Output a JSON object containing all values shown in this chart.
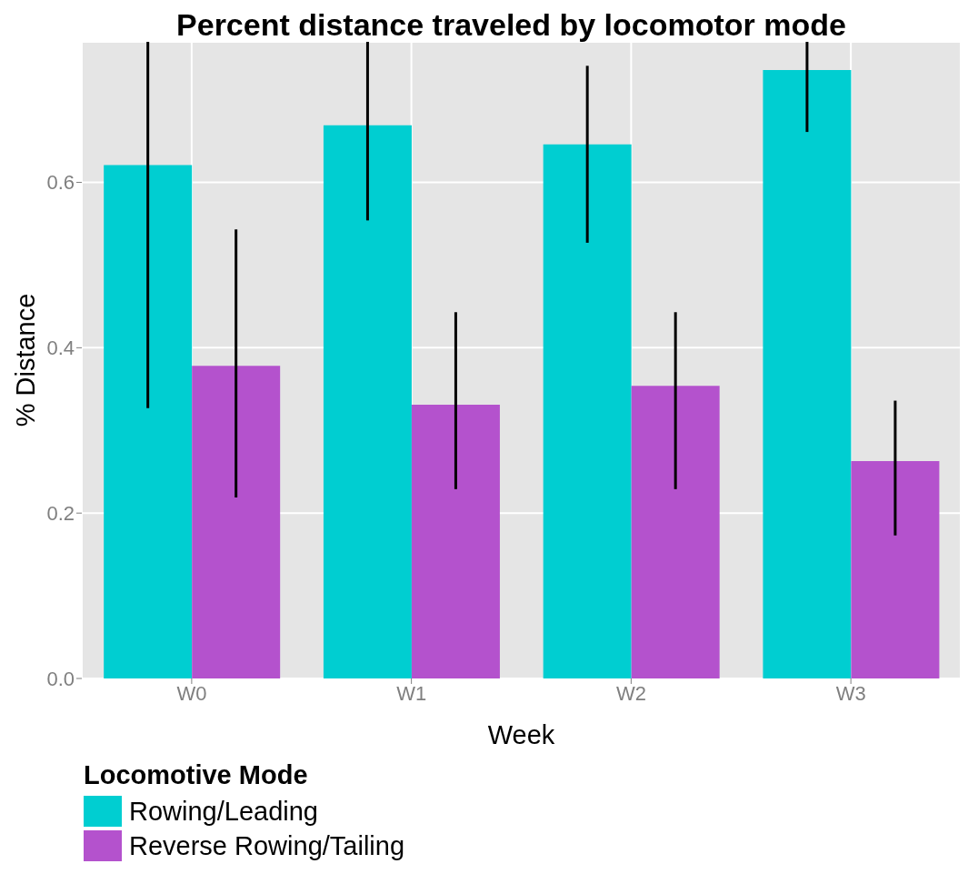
{
  "chart_data": {
    "type": "bar",
    "title": "Percent distance traveled by locomotor mode",
    "xlabel": "Week",
    "ylabel": "% Distance",
    "legend_title": "Locomotive Mode",
    "categories": [
      "W0",
      "W1",
      "W2",
      "W3"
    ],
    "series": [
      {
        "name": "Rowing/Leading",
        "color": "#00ced1",
        "values": [
          0.621,
          0.669,
          0.646,
          0.736
        ],
        "errors": [
          [
            0.327,
            0.77
          ],
          [
            0.554,
            0.77
          ],
          [
            0.527,
            0.741
          ],
          [
            0.661,
            0.77
          ]
        ]
      },
      {
        "name": "Reverse Rowing/Tailing",
        "color": "#b452cd",
        "values": [
          0.378,
          0.331,
          0.354,
          0.263
        ],
        "errors": [
          [
            0.219,
            0.543
          ],
          [
            0.229,
            0.443
          ],
          [
            0.229,
            0.443
          ],
          [
            0.173,
            0.336
          ]
        ]
      }
    ],
    "ylim": [
      0,
      0.77
    ],
    "yticks": [
      {
        "value": 0,
        "label": "0.0"
      },
      {
        "value": 0.2,
        "label": "0.2"
      },
      {
        "value": 0.4,
        "label": "0.4"
      },
      {
        "value": 0.6,
        "label": "0.6"
      }
    ],
    "grid": true,
    "legend": "bottom left"
  }
}
